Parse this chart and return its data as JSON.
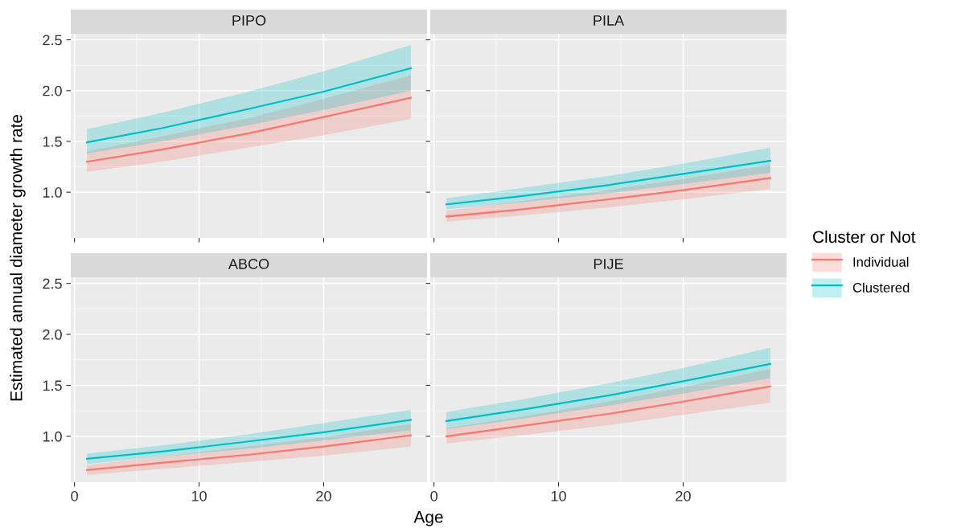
{
  "chart_data": [
    {
      "type": "line",
      "title": "PIPO",
      "ylabel": "Estimated annual diameter growth rate",
      "legend_title": "Cluster or Not",
      "legend": "right",
      "grid": true,
      "tick_labels": "y",
      "xlim": [
        -0.3,
        28.3
      ],
      "ylim": [
        0.55,
        2.56
      ],
      "xticks": [
        0,
        10,
        20
      ],
      "yticks": [
        {
          "value": 1,
          "label": "1.0"
        },
        {
          "value": 1.5,
          "label": "1.5"
        },
        {
          "value": 2,
          "label": "2.0"
        },
        {
          "value": 2.5,
          "label": "2.5"
        }
      ],
      "series": [
        {
          "name": "Individual",
          "color": "#f8766d",
          "x": [
            1,
            7,
            14,
            20,
            27
          ],
          "values": [
            1.3,
            1.42,
            1.58,
            1.74,
            1.93
          ],
          "lower": [
            1.2,
            1.3,
            1.44,
            1.56,
            1.72
          ],
          "upper": [
            1.4,
            1.55,
            1.73,
            1.92,
            2.15
          ]
        },
        {
          "name": "Clustered",
          "color": "#00bfc4",
          "x": [
            1,
            7,
            14,
            20,
            27
          ],
          "values": [
            1.49,
            1.63,
            1.82,
            1.99,
            2.22
          ],
          "lower": [
            1.38,
            1.5,
            1.66,
            1.81,
            2.0
          ],
          "upper": [
            1.62,
            1.78,
            1.99,
            2.19,
            2.45
          ]
        }
      ]
    },
    {
      "type": "line",
      "title": "PILA",
      "grid": true,
      "tick_labels": false,
      "xlim": [
        -0.3,
        28.3
      ],
      "ylim": [
        0.55,
        2.56
      ],
      "xticks": [
        0,
        10,
        20
      ],
      "yticks": [
        {
          "value": 1,
          "label": null
        },
        {
          "value": 1.5,
          "label": null
        },
        {
          "value": 2,
          "label": null
        },
        {
          "value": 2.5,
          "label": null
        }
      ],
      "series": [
        {
          "color": "#f8766d",
          "x": [
            1,
            7,
            14,
            20,
            27
          ],
          "values": [
            0.76,
            0.83,
            0.93,
            1.02,
            1.14
          ],
          "lower": [
            0.71,
            0.77,
            0.85,
            0.93,
            1.03
          ],
          "upper": [
            0.82,
            0.91,
            1.02,
            1.13,
            1.27
          ]
        },
        {
          "color": "#00bfc4",
          "x": [
            1,
            7,
            14,
            20,
            27
          ],
          "values": [
            0.88,
            0.96,
            1.07,
            1.18,
            1.31
          ],
          "lower": [
            0.83,
            0.9,
            0.99,
            1.08,
            1.19
          ],
          "upper": [
            0.94,
            1.04,
            1.16,
            1.28,
            1.44
          ]
        }
      ]
    },
    {
      "type": "line",
      "title": "ABCO",
      "xlabel": "Age",
      "grid": true,
      "xlim": [
        -0.3,
        28.3
      ],
      "ylim": [
        0.55,
        2.56
      ],
      "xticks": [
        0,
        10,
        20
      ],
      "yticks": [
        {
          "value": 1,
          "label": "1.0"
        },
        {
          "value": 1.5,
          "label": "1.5"
        },
        {
          "value": 2,
          "label": "2.0"
        },
        {
          "value": 2.5,
          "label": "2.5"
        }
      ],
      "series": [
        {
          "color": "#f8766d",
          "x": [
            1,
            7,
            14,
            20,
            27
          ],
          "values": [
            0.67,
            0.74,
            0.82,
            0.9,
            1.01
          ],
          "lower": [
            0.62,
            0.68,
            0.75,
            0.81,
            0.9
          ],
          "upper": [
            0.72,
            0.8,
            0.9,
            0.99,
            1.12
          ]
        },
        {
          "color": "#00bfc4",
          "x": [
            1,
            7,
            14,
            20,
            27
          ],
          "values": [
            0.78,
            0.85,
            0.95,
            1.04,
            1.16
          ],
          "lower": [
            0.73,
            0.8,
            0.88,
            0.96,
            1.06
          ],
          "upper": [
            0.83,
            0.91,
            1.02,
            1.13,
            1.26
          ]
        }
      ]
    },
    {
      "type": "line",
      "title": "PIJE",
      "grid": true,
      "tick_labels": "x",
      "xlim": [
        -0.3,
        28.3
      ],
      "ylim": [
        0.55,
        2.56
      ],
      "xticks": [
        0,
        10,
        20
      ],
      "yticks": [
        {
          "value": 1,
          "label": null
        },
        {
          "value": 1.5,
          "label": null
        },
        {
          "value": 2,
          "label": null
        },
        {
          "value": 2.5,
          "label": null
        }
      ],
      "series": [
        {
          "color": "#f8766d",
          "x": [
            1,
            7,
            14,
            20,
            27
          ],
          "values": [
            1.0,
            1.1,
            1.22,
            1.34,
            1.49
          ],
          "lower": [
            0.93,
            1.01,
            1.11,
            1.21,
            1.33
          ],
          "upper": [
            1.08,
            1.19,
            1.34,
            1.48,
            1.66
          ]
        },
        {
          "color": "#00bfc4",
          "x": [
            1,
            7,
            14,
            20,
            27
          ],
          "values": [
            1.15,
            1.26,
            1.4,
            1.54,
            1.71
          ],
          "lower": [
            1.07,
            1.17,
            1.3,
            1.42,
            1.57
          ],
          "upper": [
            1.24,
            1.36,
            1.52,
            1.67,
            1.87
          ]
        }
      ]
    }
  ]
}
